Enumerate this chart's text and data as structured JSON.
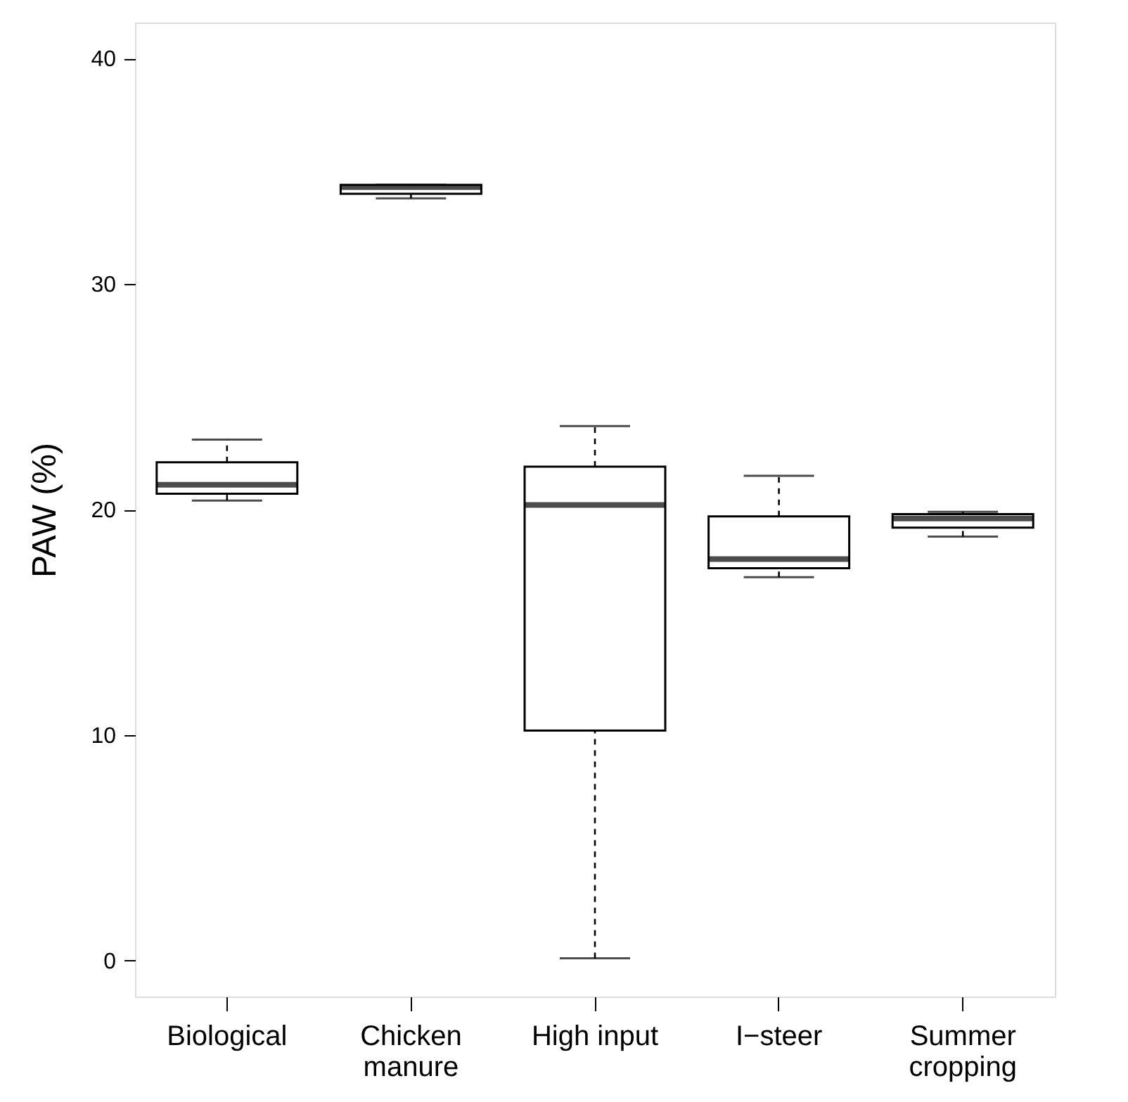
{
  "chart_data": {
    "type": "box",
    "ylabel": "PAW (%)",
    "categories": [
      "Biological",
      "Chicken manure",
      "High input",
      "I−steer",
      "Summer cropping"
    ],
    "boxes": [
      {
        "low": 20.4,
        "q1": 20.7,
        "median": 21.1,
        "q3": 22.1,
        "high": 23.1
      },
      {
        "low": 33.8,
        "q1": 34.0,
        "median": 34.3,
        "q3": 34.4,
        "high": 34.4
      },
      {
        "low": 0.1,
        "q1": 10.2,
        "median": 20.2,
        "q3": 21.9,
        "high": 23.7
      },
      {
        "low": 17.0,
        "q1": 17.4,
        "median": 17.8,
        "q3": 19.7,
        "high": 21.5
      },
      {
        "low": 18.8,
        "q1": 19.2,
        "median": 19.6,
        "q3": 19.8,
        "high": 19.9
      }
    ],
    "ylim": [
      -1.6,
      41.6
    ],
    "yticks": [
      0,
      10,
      20,
      30,
      40
    ],
    "grid": false
  }
}
